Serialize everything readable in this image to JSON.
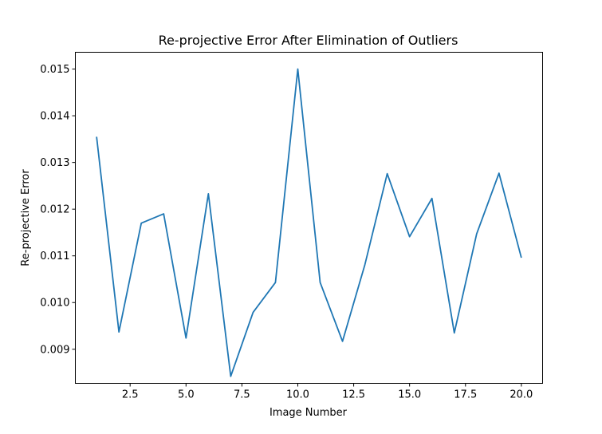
{
  "chart_data": {
    "type": "line",
    "title": "Re-projective Error After Elimination of Outliers",
    "xlabel": "Image Number",
    "ylabel": "Re-projective Error",
    "xlim": [
      0.05,
      20.95
    ],
    "ylim": [
      0.00827,
      0.01536
    ],
    "grid": false,
    "legend": "none",
    "xticks": [
      2.5,
      5.0,
      7.5,
      10.0,
      12.5,
      15.0,
      17.5,
      20.0
    ],
    "xtick_labels": [
      "2.5",
      "5.0",
      "7.5",
      "10.0",
      "12.5",
      "15.0",
      "17.5",
      "20.0"
    ],
    "yticks": [
      0.009,
      0.01,
      0.011,
      0.012,
      0.013,
      0.014,
      0.015
    ],
    "ytick_labels": [
      "0.009",
      "0.010",
      "0.011",
      "0.012",
      "0.013",
      "0.014",
      "0.015"
    ],
    "line_color": "#1f77b4",
    "series": [
      {
        "x": [
          1,
          2,
          3,
          4,
          5,
          6,
          7,
          8,
          9,
          10,
          11,
          12,
          13,
          14,
          15,
          16,
          17,
          18,
          19,
          20
        ],
        "values": [
          0.01355,
          0.00937,
          0.0117,
          0.0119,
          0.00924,
          0.01233,
          0.00842,
          0.00979,
          0.01043,
          0.015,
          0.01043,
          0.00917,
          0.01081,
          0.01276,
          0.01141,
          0.01223,
          0.00935,
          0.01147,
          0.01277,
          0.01096
        ]
      }
    ]
  }
}
